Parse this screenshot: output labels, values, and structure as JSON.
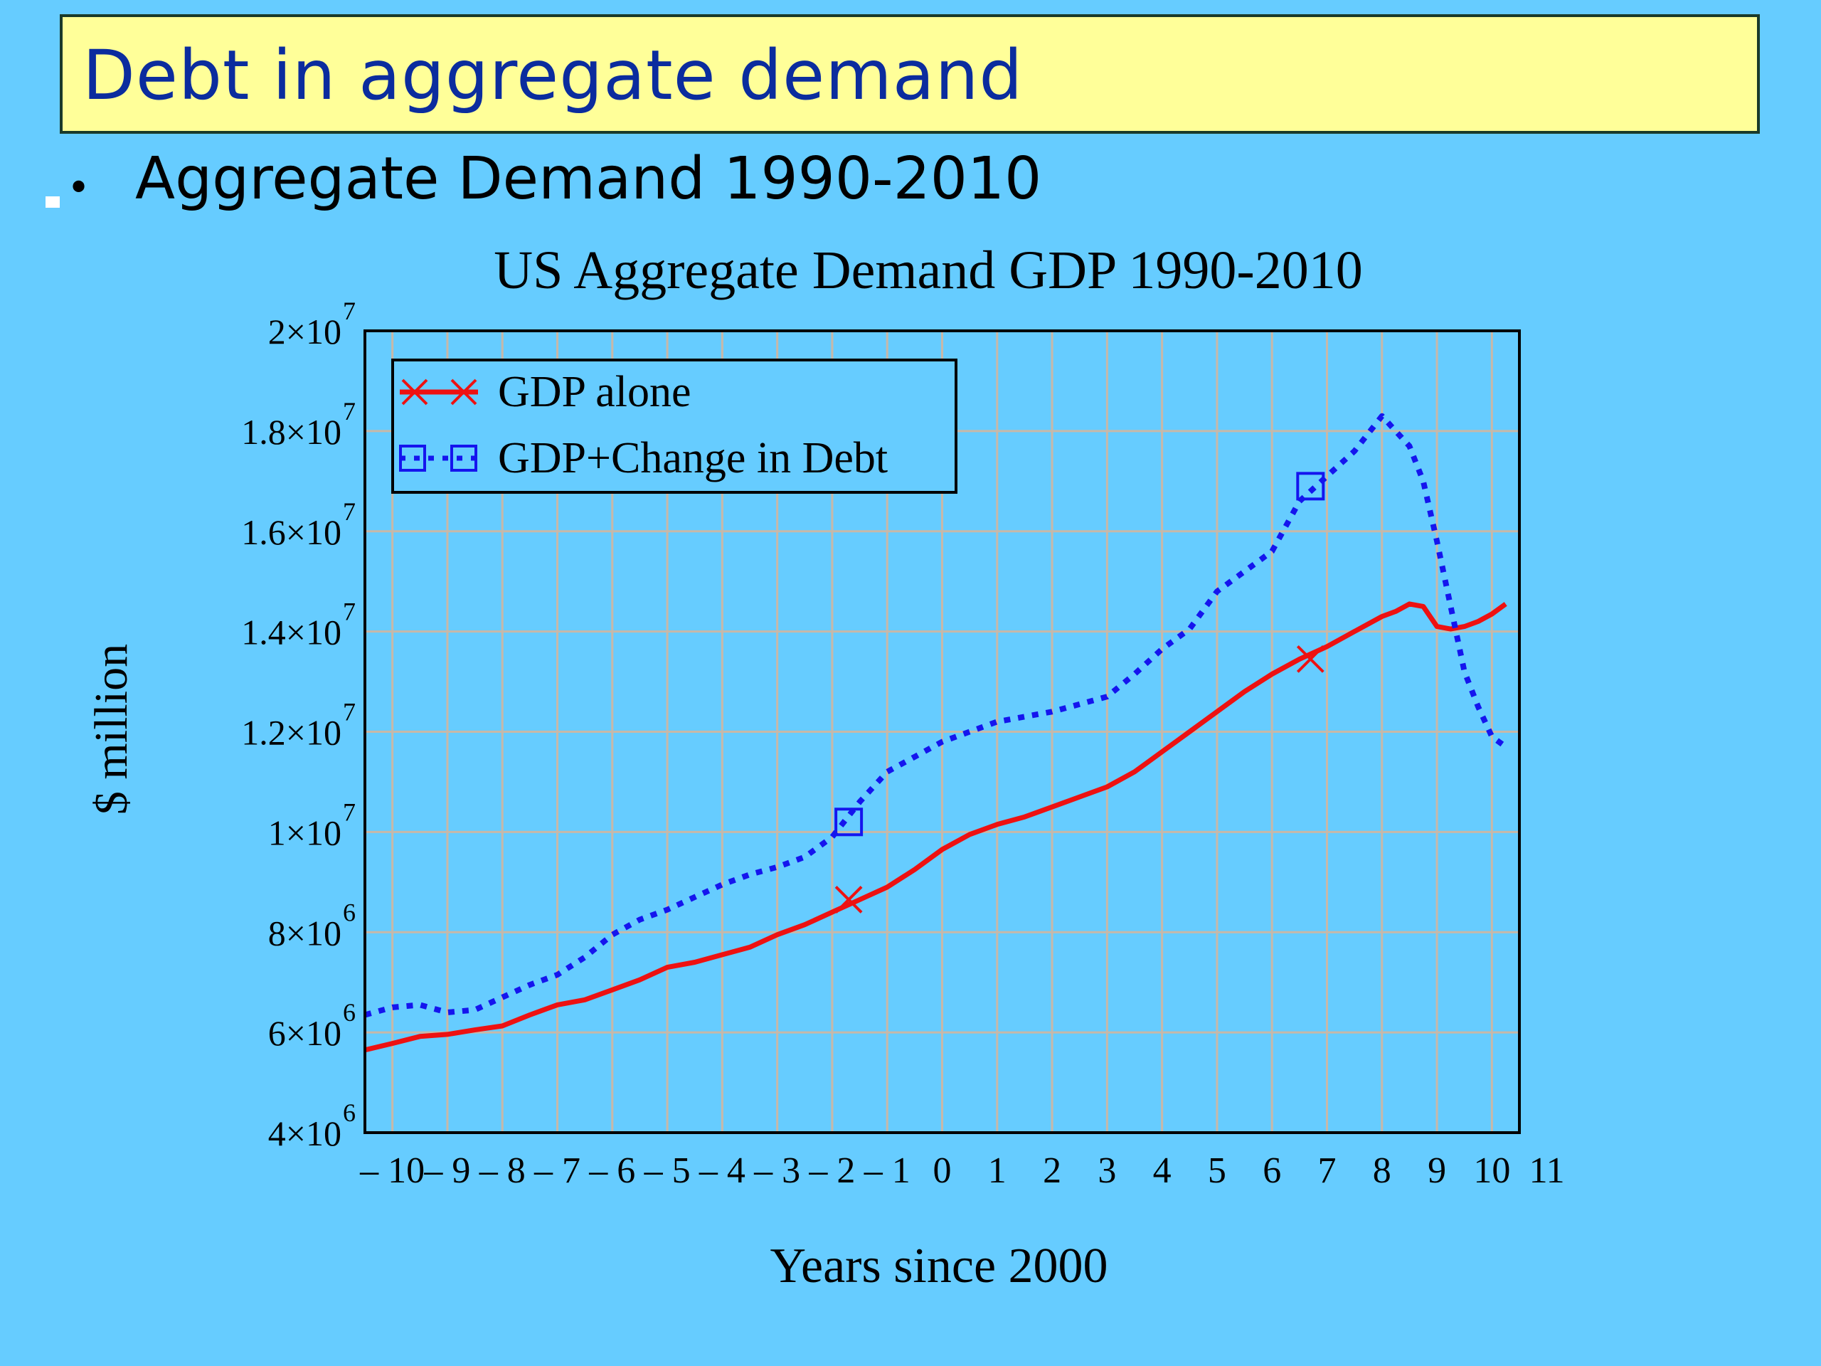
{
  "slide": {
    "title": "Debt in aggregate demand",
    "bullet": "Aggregate Demand 1990-2010",
    "bullet_marker": "•"
  },
  "colors": {
    "background": "#66CCFF",
    "title_bg": "#FFFF99",
    "title_text": "#0B2C9E",
    "gdp_line": "#EE1111",
    "debt_line": "#1515EE",
    "grid": "#C8B8A8"
  },
  "chart_data": {
    "type": "line",
    "title": "US Aggregate Demand GDP 1990-2010",
    "xlabel": "Years since 2000",
    "ylabel": "$ million",
    "xlim": [
      -10.5,
      10.5
    ],
    "ylim": [
      4000000,
      20000000
    ],
    "x_ticks": [
      -10,
      -9,
      -8,
      -7,
      -6,
      -5,
      -4,
      -3,
      -2,
      -1,
      0,
      1,
      2,
      3,
      4,
      5,
      6,
      7,
      8,
      9,
      10,
      11
    ],
    "x_tick_labels": [
      "– 10",
      "– 9",
      "– 8",
      "– 7",
      "– 6",
      "– 5",
      "– 4",
      "– 3",
      "– 2",
      "– 1",
      "0",
      "1",
      "2",
      "3",
      "4",
      "5",
      "6",
      "7",
      "8",
      "9",
      "10",
      "11"
    ],
    "y_ticks": [
      4000000,
      6000000,
      8000000,
      10000000,
      12000000,
      14000000,
      16000000,
      18000000,
      20000000
    ],
    "y_tick_labels": [
      {
        "mant": "4×10",
        "exp": "6"
      },
      {
        "mant": "6×10",
        "exp": "6"
      },
      {
        "mant": "8×10",
        "exp": "6"
      },
      {
        "mant": "1×10",
        "exp": "7"
      },
      {
        "mant": "1.2×10",
        "exp": "7"
      },
      {
        "mant": "1.4×10",
        "exp": "7"
      },
      {
        "mant": "1.6×10",
        "exp": "7"
      },
      {
        "mant": "1.8×10",
        "exp": "7"
      },
      {
        "mant": "2×10",
        "exp": "7"
      }
    ],
    "grid": true,
    "legend_position": "top-left",
    "series": [
      {
        "name": "GDP alone",
        "style": "solid",
        "marker": "x",
        "marker_points": [
          {
            "x": -1.7,
            "y": 8650000
          },
          {
            "x": 6.7,
            "y": 13450000
          }
        ],
        "x": [
          -10.5,
          -10,
          -9.5,
          -9,
          -8.5,
          -8,
          -7.5,
          -7,
          -6.5,
          -6,
          -5.5,
          -5,
          -4.5,
          -4,
          -3.5,
          -3,
          -2.5,
          -2,
          -1.5,
          -1,
          -0.5,
          0,
          0.5,
          1,
          1.5,
          2,
          2.5,
          3,
          3.5,
          4,
          4.5,
          5,
          5.5,
          6,
          6.5,
          7,
          7.5,
          8,
          8.25,
          8.5,
          8.75,
          9,
          9.25,
          9.5,
          9.75,
          10,
          10.25
        ],
        "values": [
          5650000,
          5780000,
          5920000,
          5960000,
          6050000,
          6130000,
          6350000,
          6550000,
          6650000,
          6850000,
          7050000,
          7300000,
          7400000,
          7550000,
          7700000,
          7950000,
          8150000,
          8400000,
          8650000,
          8900000,
          9250000,
          9650000,
          9950000,
          10150000,
          10300000,
          10500000,
          10700000,
          10900000,
          11200000,
          11600000,
          12000000,
          12400000,
          12800000,
          13150000,
          13450000,
          13700000,
          14000000,
          14300000,
          14400000,
          14550000,
          14500000,
          14100000,
          14050000,
          14100000,
          14200000,
          14350000,
          14550000
        ]
      },
      {
        "name": "GDP+Change in Debt",
        "style": "dotted",
        "marker": "square",
        "marker_points": [
          {
            "x": -1.7,
            "y": 10200000
          },
          {
            "x": 6.7,
            "y": 16900000
          }
        ],
        "x": [
          -10.5,
          -10,
          -9.5,
          -9,
          -8.5,
          -8,
          -7.5,
          -7,
          -6.5,
          -6,
          -5.5,
          -5,
          -4.5,
          -4,
          -3.5,
          -3,
          -2.5,
          -2,
          -1.5,
          -1,
          -0.5,
          0,
          0.5,
          1,
          1.5,
          2,
          2.5,
          3,
          3.5,
          4,
          4.5,
          5,
          5.5,
          6,
          6.5,
          7,
          7.5,
          8,
          8.25,
          8.5,
          8.75,
          9,
          9.25,
          9.5,
          9.75,
          10,
          10.25
        ],
        "values": [
          6350000,
          6500000,
          6550000,
          6400000,
          6450000,
          6700000,
          6950000,
          7150000,
          7500000,
          7950000,
          8250000,
          8450000,
          8700000,
          8950000,
          9150000,
          9300000,
          9500000,
          9900000,
          10600000,
          11200000,
          11500000,
          11800000,
          12000000,
          12200000,
          12300000,
          12400000,
          12550000,
          12700000,
          13150000,
          13650000,
          14050000,
          14800000,
          15200000,
          15600000,
          16600000,
          17100000,
          17600000,
          18300000,
          18000000,
          17700000,
          17000000,
          15800000,
          14500000,
          13200000,
          12500000,
          11900000,
          11700000
        ]
      }
    ]
  }
}
